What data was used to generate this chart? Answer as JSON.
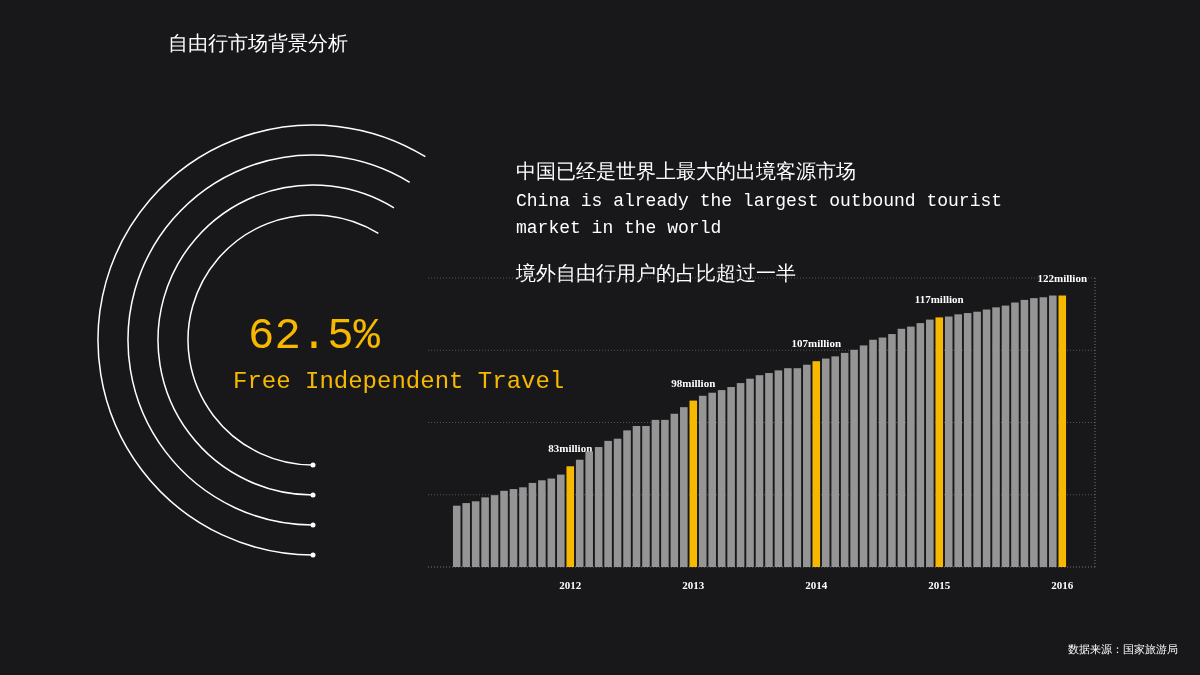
{
  "chart_data": {
    "type": "bar",
    "title": "自由行市场背景分析",
    "ylim": [
      60,
      126
    ],
    "grid": "y",
    "categories": [
      null,
      null,
      null,
      null,
      null,
      null,
      null,
      null,
      null,
      null,
      null,
      null,
      "2012",
      null,
      null,
      null,
      null,
      null,
      null,
      null,
      null,
      null,
      null,
      null,
      null,
      "2013",
      null,
      null,
      null,
      null,
      null,
      null,
      null,
      null,
      null,
      null,
      null,
      null,
      "2014",
      null,
      null,
      null,
      null,
      null,
      null,
      null,
      null,
      null,
      null,
      null,
      null,
      "2015",
      null,
      null,
      null,
      null,
      null,
      null,
      null,
      null,
      null,
      null,
      null,
      null,
      "2016"
    ],
    "values": [
      74.0,
      74.6,
      75.0,
      75.9,
      76.4,
      77.4,
      77.8,
      78.2,
      79.2,
      79.8,
      80.2,
      81.1,
      83,
      84.5,
      86.4,
      87.4,
      88.8,
      89.3,
      91.2,
      92.2,
      92.2,
      93.6,
      93.6,
      95.0,
      96.5,
      98,
      99.1,
      99.8,
      100.4,
      101.1,
      102.0,
      103.0,
      103.8,
      104.3,
      104.9,
      105.4,
      105.4,
      106.2,
      107,
      107.6,
      108.1,
      108.9,
      109.6,
      110.6,
      111.9,
      112.4,
      113.2,
      114.4,
      114.9,
      115.7,
      116.5,
      117,
      117.2,
      117.7,
      118.0,
      118.3,
      118.8,
      119.3,
      119.7,
      120.4,
      121.0,
      121.4,
      121.6,
      122.0,
      122
    ],
    "colors": [
      "#959595",
      "#959595",
      "#959595",
      "#959595",
      "#959595",
      "#959595",
      "#959595",
      "#959595",
      "#959595",
      "#959595",
      "#959595",
      "#959595",
      "#f7b900",
      "#959595",
      "#959595",
      "#959595",
      "#959595",
      "#959595",
      "#959595",
      "#959595",
      "#959595",
      "#959595",
      "#959595",
      "#959595",
      "#959595",
      "#f7b900",
      "#959595",
      "#959595",
      "#959595",
      "#959595",
      "#959595",
      "#959595",
      "#959595",
      "#959595",
      "#959595",
      "#959595",
      "#959595",
      "#959595",
      "#f7b900",
      "#959595",
      "#959595",
      "#959595",
      "#959595",
      "#959595",
      "#959595",
      "#959595",
      "#959595",
      "#959595",
      "#959595",
      "#959595",
      "#959595",
      "#f7b900",
      "#959595",
      "#959595",
      "#959595",
      "#959595",
      "#959595",
      "#959595",
      "#959595",
      "#959595",
      "#959595",
      "#959595",
      "#959595",
      "#959595",
      "#f7b900"
    ],
    "value_labels": [
      null,
      null,
      null,
      null,
      null,
      null,
      null,
      null,
      null,
      null,
      null,
      null,
      "83million",
      null,
      null,
      null,
      null,
      null,
      null,
      null,
      null,
      null,
      null,
      null,
      null,
      "98million",
      null,
      null,
      null,
      null,
      null,
      null,
      null,
      null,
      null,
      null,
      null,
      null,
      "107million",
      null,
      null,
      null,
      null,
      null,
      null,
      null,
      null,
      null,
      null,
      null,
      null,
      "117million",
      null,
      null,
      null,
      null,
      null,
      null,
      null,
      null,
      null,
      null,
      null,
      null,
      "122million"
    ],
    "annotations": [
      "中国已经是世界上最大的出境客源市场",
      "China is already the largest outbound tourist market in the world",
      "境外自由行用户的占比超过一半",
      "62.5%",
      "Free Independent Travel",
      "数据来源：国家旅游局"
    ]
  }
}
